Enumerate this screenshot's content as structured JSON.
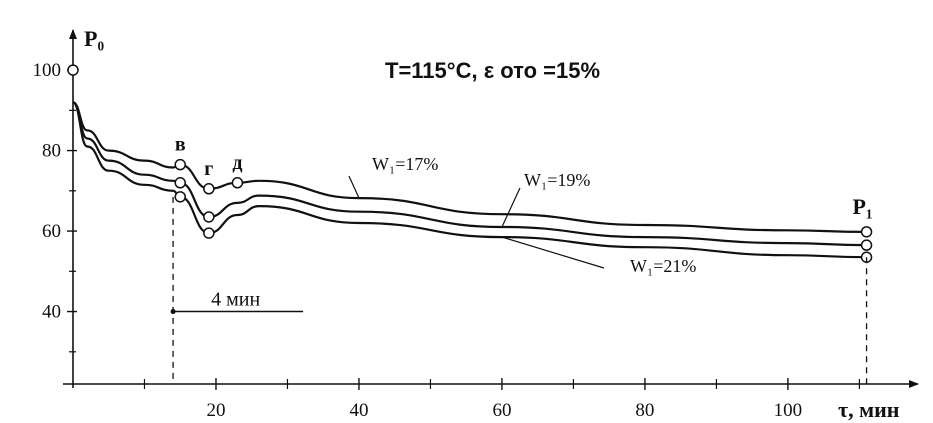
{
  "chart_data": {
    "type": "line",
    "title": "T=115°C, ε ото =15%",
    "ylabel": "P₀",
    "xlabel": "τ, мин",
    "xlim": [
      0,
      114
    ],
    "ylim": [
      22,
      103
    ],
    "x_ticks": [
      20,
      40,
      60,
      80,
      100
    ],
    "y_ticks": [
      40,
      60,
      80,
      100
    ],
    "grid": false,
    "legend": "none",
    "series": [
      {
        "name": "W₁=17%",
        "x": [
          0,
          2,
          5,
          10,
          14,
          15,
          19,
          23,
          26,
          40,
          60,
          80,
          100,
          111
        ],
        "y": [
          92,
          85,
          80,
          77.5,
          75.8,
          76.5,
          70.5,
          72,
          72.5,
          68.2,
          64.2,
          61.5,
          60.2,
          59.8
        ]
      },
      {
        "name": "W₁=19%",
        "x": [
          0,
          2,
          5,
          10,
          14,
          15,
          19,
          23,
          26,
          40,
          60,
          80,
          100,
          111
        ],
        "y": [
          92,
          83,
          77.5,
          74,
          72.5,
          72,
          63.5,
          67,
          68.8,
          64.8,
          61,
          58.5,
          57,
          56.5
        ]
      },
      {
        "name": "W₁=21%",
        "x": [
          0,
          2,
          5,
          10,
          14,
          15,
          19,
          23,
          26,
          40,
          60,
          80,
          100,
          111
        ],
        "y": [
          92,
          81,
          75,
          71.5,
          70,
          68.5,
          59.5,
          64,
          66.2,
          62,
          58.5,
          56,
          54,
          53.5
        ]
      }
    ],
    "annotations": {
      "point_labels": [
        "в",
        "г",
        "д"
      ],
      "end_label": "P₁",
      "start_value": "100",
      "interval_label": "4 мин",
      "interval_x": 14,
      "interval_y": 40,
      "end_x": 111
    }
  }
}
